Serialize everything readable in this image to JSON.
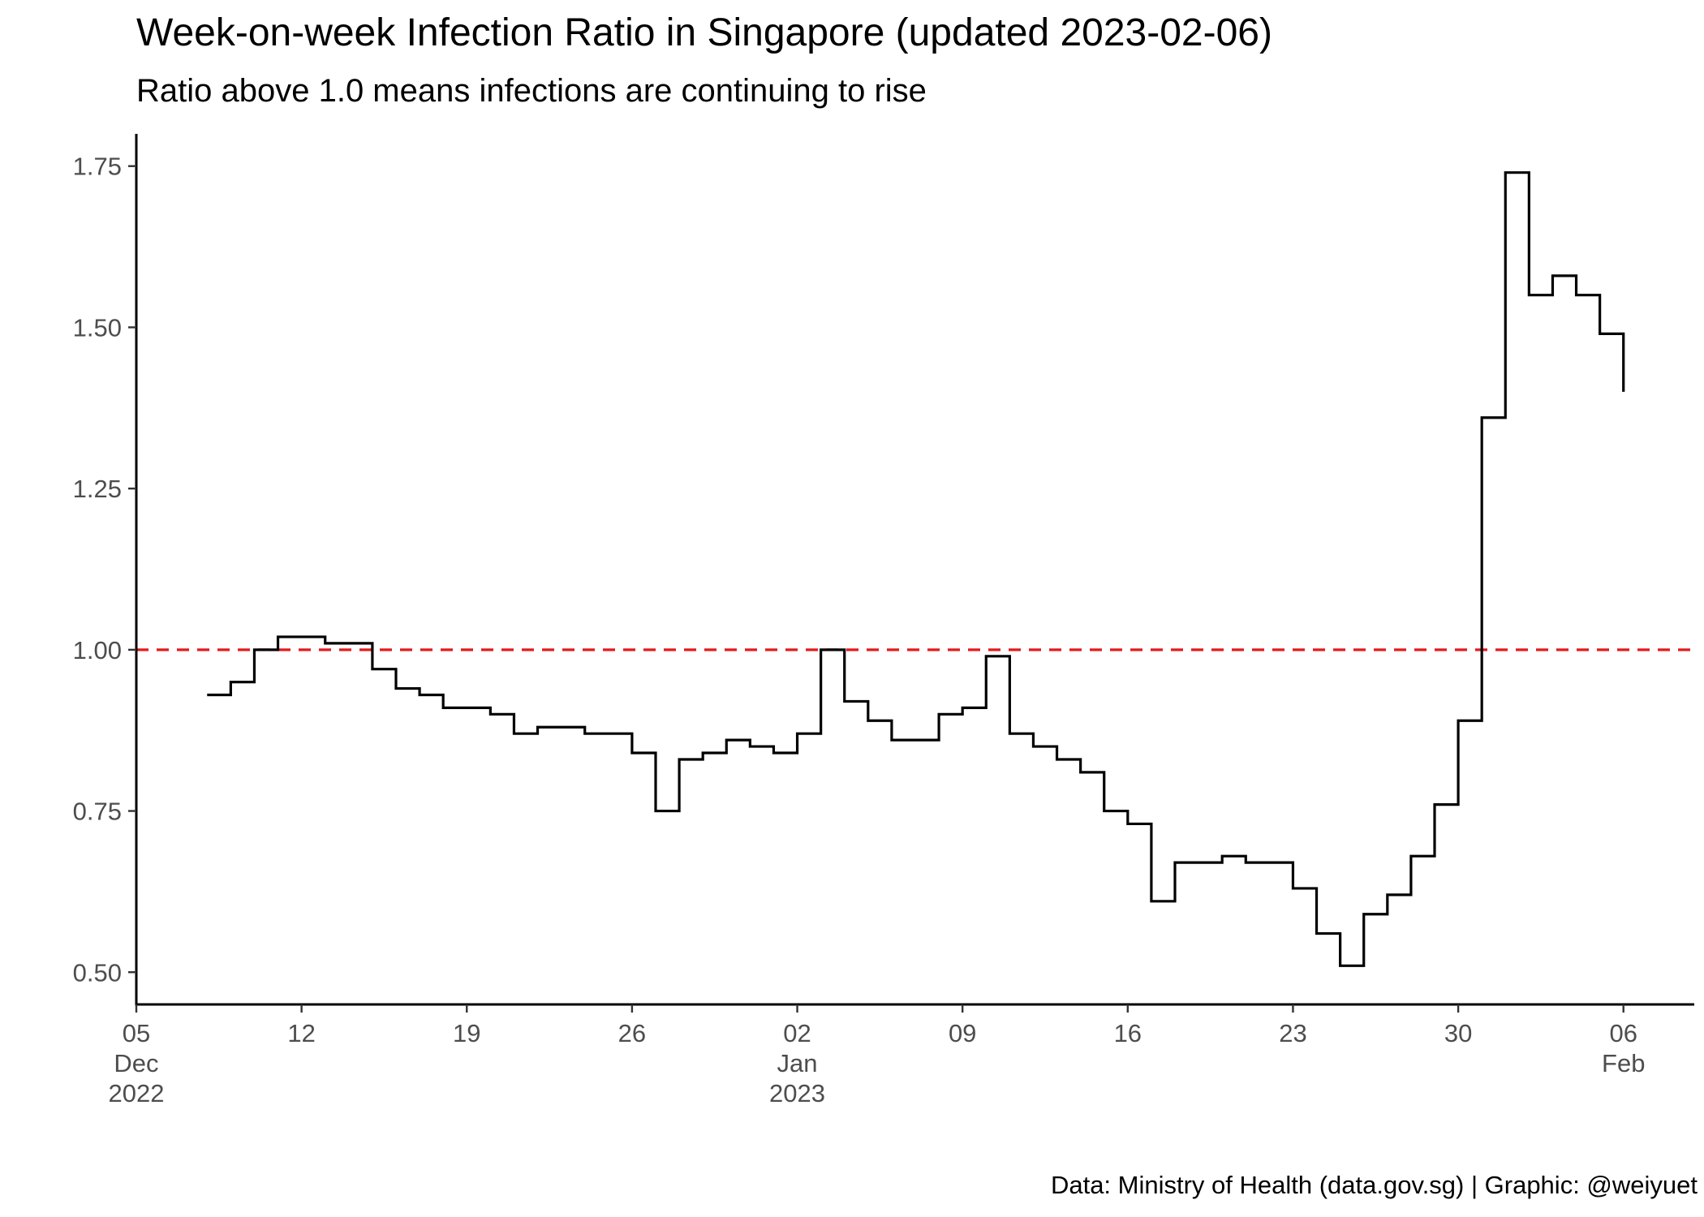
{
  "chart_data": {
    "type": "line",
    "title": "Week-on-week Infection Ratio in Singapore (updated 2023-02-06)",
    "subtitle": "Ratio above 1.0 means infections are continuing to rise",
    "caption": "Data: Ministry of Health (data.gov.sg) | Graphic: @weiyuet",
    "xlabel": "",
    "ylabel": "",
    "x_scale": "date",
    "xlim": [
      "2022-12-05",
      "2023-02-09"
    ],
    "ylim": [
      0.45,
      1.8
    ],
    "grid": false,
    "line_style": "step",
    "y_ticks": [
      "0.50",
      "0.75",
      "1.00",
      "1.25",
      "1.50",
      "1.75"
    ],
    "x_ticks": [
      {
        "date": "2022-12-05",
        "label": [
          "05",
          "Dec",
          "2022"
        ]
      },
      {
        "date": "2022-12-12",
        "label": [
          "12"
        ]
      },
      {
        "date": "2022-12-19",
        "label": [
          "19"
        ]
      },
      {
        "date": "2022-12-26",
        "label": [
          "26"
        ]
      },
      {
        "date": "2023-01-02",
        "label": [
          "02",
          "Jan",
          "2023"
        ]
      },
      {
        "date": "2023-01-09",
        "label": [
          "09"
        ]
      },
      {
        "date": "2023-01-16",
        "label": [
          "16"
        ]
      },
      {
        "date": "2023-01-23",
        "label": [
          "23"
        ]
      },
      {
        "date": "2023-01-30",
        "label": [
          "30"
        ]
      },
      {
        "date": "2023-02-06",
        "label": [
          "06",
          "Feb"
        ]
      }
    ],
    "reference_line": {
      "y": 1.0,
      "color": "#e41a1c",
      "style": "dashed"
    },
    "series": [
      {
        "color": "#000000",
        "x": [
          "2022-12-08",
          "2022-12-09",
          "2022-12-10",
          "2022-12-11",
          "2022-12-12",
          "2022-12-13",
          "2022-12-14",
          "2022-12-15",
          "2022-12-16",
          "2022-12-17",
          "2022-12-18",
          "2022-12-19",
          "2022-12-20",
          "2022-12-21",
          "2022-12-22",
          "2022-12-23",
          "2022-12-24",
          "2022-12-25",
          "2022-12-26",
          "2022-12-27",
          "2022-12-28",
          "2022-12-29",
          "2022-12-30",
          "2022-12-31",
          "2023-01-01",
          "2023-01-02",
          "2023-01-03",
          "2023-01-04",
          "2023-01-05",
          "2023-01-06",
          "2023-01-07",
          "2023-01-08",
          "2023-01-09",
          "2023-01-10",
          "2023-01-11",
          "2023-01-12",
          "2023-01-13",
          "2023-01-14",
          "2023-01-15",
          "2023-01-16",
          "2023-01-17",
          "2023-01-18",
          "2023-01-19",
          "2023-01-20",
          "2023-01-21",
          "2023-01-22",
          "2023-01-23",
          "2023-01-24",
          "2023-01-25",
          "2023-01-26",
          "2023-01-27",
          "2023-01-28",
          "2023-01-29",
          "2023-01-30",
          "2023-01-31",
          "2023-02-01",
          "2023-02-02",
          "2023-02-03",
          "2023-02-04",
          "2023-02-05",
          "2023-02-06"
        ],
        "y": [
          0.93,
          0.95,
          1.0,
          1.02,
          1.02,
          1.01,
          1.01,
          0.97,
          0.94,
          0.93,
          0.91,
          0.91,
          0.9,
          0.87,
          0.88,
          0.88,
          0.87,
          0.87,
          0.84,
          0.75,
          0.83,
          0.84,
          0.86,
          0.85,
          0.84,
          0.87,
          1.0,
          0.92,
          0.89,
          0.86,
          0.86,
          0.9,
          0.91,
          0.99,
          0.87,
          0.85,
          0.83,
          0.81,
          0.75,
          0.73,
          0.61,
          0.67,
          0.67,
          0.68,
          0.67,
          0.67,
          0.63,
          0.56,
          0.51,
          0.59,
          0.62,
          0.68,
          0.76,
          0.89,
          1.36,
          1.74,
          1.55,
          1.58,
          1.55,
          1.49,
          1.4
        ]
      }
    ]
  }
}
